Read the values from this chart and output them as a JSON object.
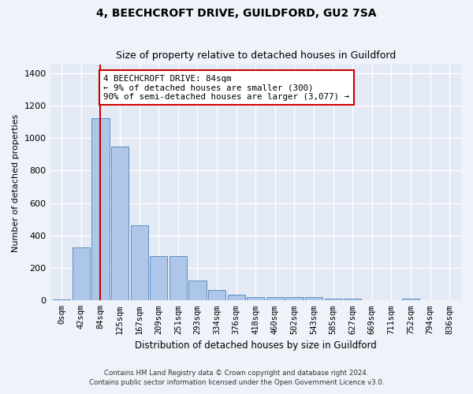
{
  "title1": "4, BEECHCROFT DRIVE, GUILDFORD, GU2 7SA",
  "title2": "Size of property relative to detached houses in Guildford",
  "xlabel": "Distribution of detached houses by size in Guildford",
  "ylabel": "Number of detached properties",
  "footnote1": "Contains HM Land Registry data © Crown copyright and database right 2024.",
  "footnote2": "Contains public sector information licensed under the Open Government Licence v3.0.",
  "categories": [
    "0sqm",
    "42sqm",
    "84sqm",
    "125sqm",
    "167sqm",
    "209sqm",
    "251sqm",
    "293sqm",
    "334sqm",
    "376sqm",
    "418sqm",
    "460sqm",
    "502sqm",
    "543sqm",
    "585sqm",
    "627sqm",
    "669sqm",
    "711sqm",
    "752sqm",
    "794sqm",
    "836sqm"
  ],
  "values": [
    5,
    325,
    1120,
    945,
    460,
    275,
    275,
    125,
    65,
    35,
    20,
    20,
    20,
    20,
    10,
    10,
    0,
    0,
    10,
    0,
    0
  ],
  "bar_color": "#aec6e8",
  "bar_edge_color": "#5a8fc2",
  "vline_x": 2,
  "vline_color": "#cc0000",
  "annotation_text": "4 BEECHCROFT DRIVE: 84sqm\n← 9% of detached houses are smaller (300)\n90% of semi-detached houses are larger (3,077) →",
  "annotation_box_color": "#ffffff",
  "annotation_box_edge": "#cc0000",
  "ylim": [
    0,
    1450
  ],
  "yticks": [
    0,
    200,
    400,
    600,
    800,
    1000,
    1200,
    1400
  ],
  "bg_color": "#eef2f9",
  "plot_bg_color": "#e4eaf5"
}
